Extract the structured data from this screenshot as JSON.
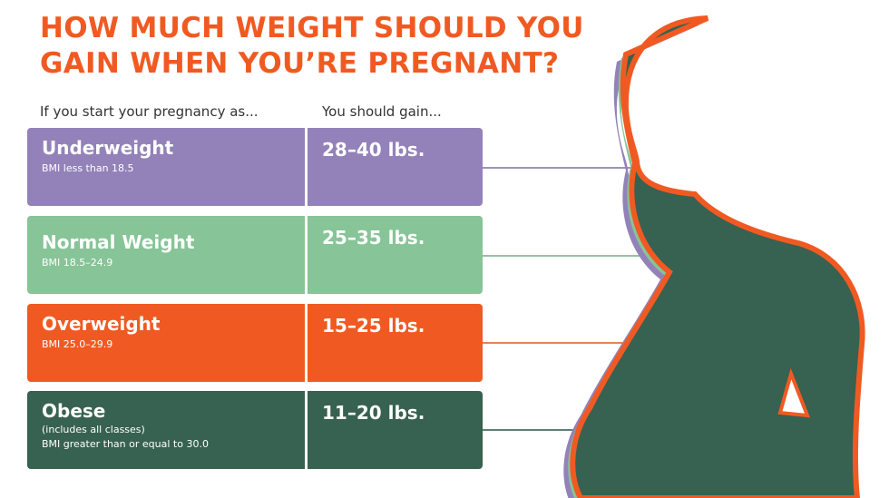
{
  "title": "HOW MUCH WEIGHT SHOULD YOU\nGAIN WHEN YOU’RE PREGNANT?",
  "headers": {
    "left": "If you start your pregnancy as...",
    "right": "You should gain..."
  },
  "rows": [
    {
      "category": "Underweight",
      "note": "",
      "bmi": "BMI less than 18.5",
      "gain": "28–40 lbs.",
      "color": "#9382b9"
    },
    {
      "category": "Normal Weight",
      "note": "",
      "bmi": "BMI 18.5–24.9",
      "gain": "25–35 lbs.",
      "color": "#87c497"
    },
    {
      "category": "Overweight",
      "note": "",
      "bmi": "BMI 25.0–29.9",
      "gain": "15–25 lbs.",
      "color": "#f05a22"
    },
    {
      "category": "Obese",
      "note": "(includes all classes)",
      "bmi": "BMI greater than or equal to 30.0",
      "gain": "11–20 lbs.",
      "color": "#376150"
    }
  ],
  "silhouette": {
    "icon": "pregnant-woman-silhouette-icon",
    "fill": "#376150",
    "outline_colors": [
      "#f05a22",
      "#9382b9",
      "#87c497"
    ]
  }
}
